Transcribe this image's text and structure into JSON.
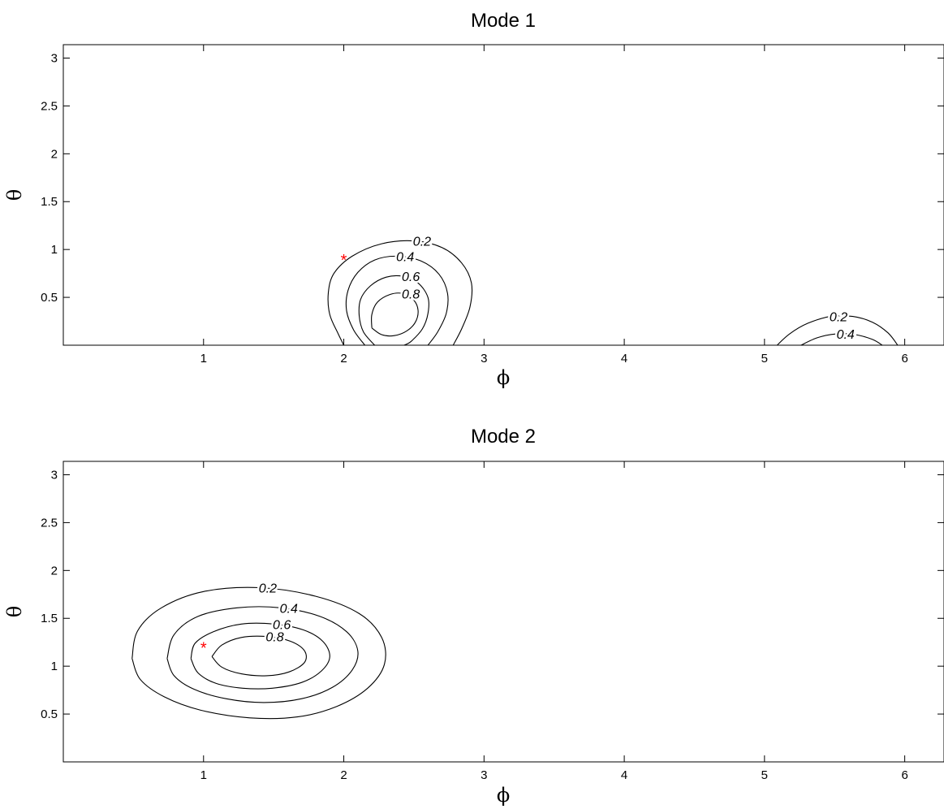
{
  "chart_data": [
    {
      "type": "contour",
      "title": "Mode 1",
      "xlabel": "ϕ",
      "ylabel": "θ",
      "xlim": [
        0,
        6.28
      ],
      "ylim": [
        0,
        3.14
      ],
      "xticks": [
        1,
        2,
        3,
        4,
        5,
        6
      ],
      "yticks": [
        0.5,
        1,
        1.5,
        2,
        2.5,
        3
      ],
      "xtick_labels": [
        "1",
        "2",
        "3",
        "4",
        "5",
        "6"
      ],
      "ytick_labels": [
        "0.5",
        "1",
        "1.5",
        "2",
        "2.5",
        "3"
      ],
      "grid": false,
      "marker": {
        "x": 2.0,
        "y": 0.9,
        "symbol": "*",
        "color": "#ff0000"
      },
      "contours": [
        {
          "level": 0.2,
          "label": "0.2",
          "points": [
            [
              2.0,
              0
            ],
            [
              1.96,
              0.12
            ],
            [
              1.9,
              0.32
            ],
            [
              1.89,
              0.55
            ],
            [
              1.93,
              0.75
            ],
            [
              2.06,
              0.93
            ],
            [
              2.27,
              1.06
            ],
            [
              2.5,
              1.09
            ],
            [
              2.7,
              1.02
            ],
            [
              2.84,
              0.86
            ],
            [
              2.91,
              0.65
            ],
            [
              2.9,
              0.4
            ],
            [
              2.84,
              0.17
            ],
            [
              2.78,
              0
            ]
          ]
        },
        {
          "level": 0.4,
          "label": "0.4",
          "points": [
            [
              2.15,
              0
            ],
            [
              2.07,
              0.16
            ],
            [
              2.02,
              0.36
            ],
            [
              2.03,
              0.57
            ],
            [
              2.1,
              0.76
            ],
            [
              2.22,
              0.89
            ],
            [
              2.38,
              0.93
            ],
            [
              2.55,
              0.88
            ],
            [
              2.68,
              0.74
            ],
            [
              2.74,
              0.54
            ],
            [
              2.73,
              0.33
            ],
            [
              2.67,
              0.14
            ],
            [
              2.6,
              0
            ]
          ]
        },
        {
          "level": 0.6,
          "label": "0.6",
          "points": [
            [
              2.22,
              0
            ],
            [
              2.14,
              0.14
            ],
            [
              2.11,
              0.31
            ],
            [
              2.12,
              0.48
            ],
            [
              2.19,
              0.62
            ],
            [
              2.3,
              0.71
            ],
            [
              2.42,
              0.72
            ],
            [
              2.53,
              0.65
            ],
            [
              2.6,
              0.5
            ],
            [
              2.6,
              0.33
            ],
            [
              2.56,
              0.17
            ],
            [
              2.48,
              0.04
            ],
            [
              2.43,
              0
            ]
          ]
        },
        {
          "level": 0.8,
          "label": "0.8",
          "points": [
            [
              2.2,
              0.18
            ],
            [
              2.2,
              0.32
            ],
            [
              2.24,
              0.45
            ],
            [
              2.33,
              0.53
            ],
            [
              2.42,
              0.54
            ],
            [
              2.5,
              0.47
            ],
            [
              2.53,
              0.36
            ],
            [
              2.51,
              0.24
            ],
            [
              2.45,
              0.15
            ],
            [
              2.36,
              0.1
            ],
            [
              2.27,
              0.11
            ],
            [
              2.2,
              0.18
            ]
          ]
        },
        {
          "level": 0.2,
          "label": "0.2",
          "points": [
            [
              5.09,
              0
            ],
            [
              5.18,
              0.12
            ],
            [
              5.31,
              0.23
            ],
            [
              5.47,
              0.3
            ],
            [
              5.63,
              0.3
            ],
            [
              5.77,
              0.24
            ],
            [
              5.88,
              0.13
            ],
            [
              5.95,
              0
            ]
          ]
        },
        {
          "level": 0.4,
          "label": "0.4",
          "points": [
            [
              5.26,
              0
            ],
            [
              5.38,
              0.08
            ],
            [
              5.52,
              0.12
            ],
            [
              5.65,
              0.11
            ],
            [
              5.77,
              0.06
            ],
            [
              5.84,
              0
            ]
          ]
        }
      ]
    },
    {
      "type": "contour",
      "title": "Mode 2",
      "xlabel": "ϕ",
      "ylabel": "θ",
      "xlim": [
        0,
        6.28
      ],
      "ylim": [
        0,
        3.14
      ],
      "xticks": [
        1,
        2,
        3,
        4,
        5,
        6
      ],
      "yticks": [
        0.5,
        1,
        1.5,
        2,
        2.5,
        3
      ],
      "xtick_labels": [
        "1",
        "2",
        "3",
        "4",
        "5",
        "6"
      ],
      "ytick_labels": [
        "0.5",
        "1",
        "1.5",
        "2",
        "2.5",
        "3"
      ],
      "grid": false,
      "marker": {
        "x": 1.0,
        "y": 1.2,
        "symbol": "*",
        "color": "#ff0000"
      },
      "contours": [
        {
          "level": 0.2,
          "label": "0.2",
          "points": [
            [
              0.49,
              1.08
            ],
            [
              0.55,
              0.86
            ],
            [
              0.72,
              0.68
            ],
            [
              0.98,
              0.54
            ],
            [
              1.33,
              0.46
            ],
            [
              1.67,
              0.47
            ],
            [
              1.95,
              0.58
            ],
            [
              2.17,
              0.77
            ],
            [
              2.29,
              1.02
            ],
            [
              2.27,
              1.3
            ],
            [
              2.11,
              1.55
            ],
            [
              1.8,
              1.73
            ],
            [
              1.4,
              1.82
            ],
            [
              1.0,
              1.78
            ],
            [
              0.7,
              1.61
            ],
            [
              0.53,
              1.37
            ],
            [
              0.49,
              1.08
            ]
          ]
        },
        {
          "level": 0.4,
          "label": "0.4",
          "points": [
            [
              0.74,
              1.08
            ],
            [
              0.79,
              0.9
            ],
            [
              0.93,
              0.76
            ],
            [
              1.16,
              0.66
            ],
            [
              1.43,
              0.62
            ],
            [
              1.7,
              0.66
            ],
            [
              1.92,
              0.78
            ],
            [
              2.06,
              0.96
            ],
            [
              2.1,
              1.16
            ],
            [
              2.02,
              1.36
            ],
            [
              1.83,
              1.52
            ],
            [
              1.55,
              1.61
            ],
            [
              1.24,
              1.61
            ],
            [
              0.96,
              1.52
            ],
            [
              0.79,
              1.33
            ],
            [
              0.74,
              1.08
            ]
          ]
        },
        {
          "level": 0.6,
          "label": "0.6",
          "points": [
            [
              0.91,
              1.08
            ],
            [
              0.96,
              0.93
            ],
            [
              1.09,
              0.82
            ],
            [
              1.28,
              0.77
            ],
            [
              1.49,
              0.77
            ],
            [
              1.7,
              0.83
            ],
            [
              1.84,
              0.95
            ],
            [
              1.9,
              1.1
            ],
            [
              1.85,
              1.26
            ],
            [
              1.71,
              1.38
            ],
            [
              1.5,
              1.44
            ],
            [
              1.27,
              1.44
            ],
            [
              1.07,
              1.36
            ],
            [
              0.94,
              1.24
            ],
            [
              0.91,
              1.08
            ]
          ]
        },
        {
          "level": 0.8,
          "label": "0.8",
          "points": [
            [
              1.06,
              1.1
            ],
            [
              1.13,
              0.99
            ],
            [
              1.27,
              0.92
            ],
            [
              1.45,
              0.9
            ],
            [
              1.61,
              0.94
            ],
            [
              1.72,
              1.04
            ],
            [
              1.72,
              1.16
            ],
            [
              1.62,
              1.26
            ],
            [
              1.45,
              1.31
            ],
            [
              1.27,
              1.3
            ],
            [
              1.13,
              1.22
            ],
            [
              1.06,
              1.1
            ]
          ]
        }
      ]
    }
  ]
}
